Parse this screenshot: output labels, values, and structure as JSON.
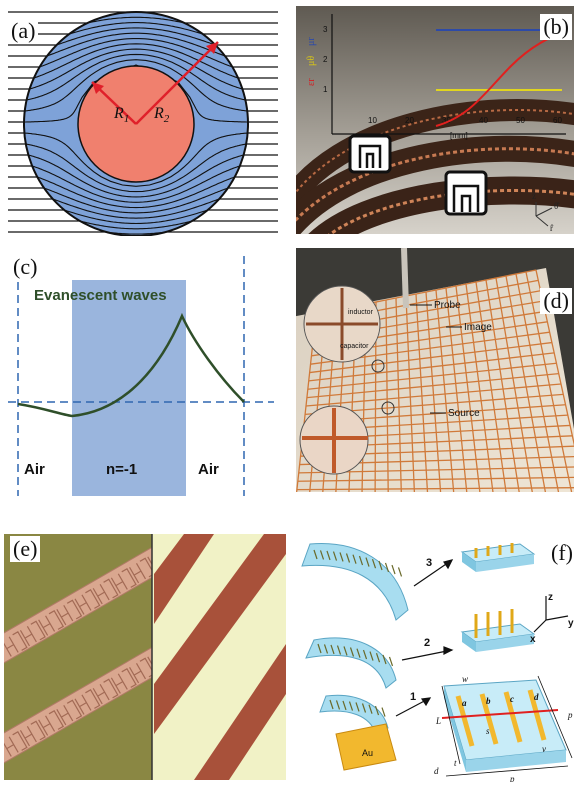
{
  "panels": {
    "a": {
      "label": "(a)",
      "r1": "R",
      "r1_sub": "1",
      "r2": "R",
      "r2_sub": "2"
    },
    "b": {
      "label": "(b)",
      "axis_x_ticks": [
        "10",
        "20",
        "30",
        "40",
        "50",
        "60"
      ],
      "axis_x_unit": "[mm]",
      "axis_y_ticks": [
        "1",
        "2",
        "3"
      ],
      "legend_labels": [
        "εr",
        "μθ",
        "μr"
      ],
      "coord_labels": [
        "ẑ",
        "θ̂",
        "r̂"
      ]
    },
    "c": {
      "label": "(c)",
      "title": "Evanescent waves",
      "regions": [
        "Air",
        "n=-1",
        "Air"
      ]
    },
    "d": {
      "label": "(d)",
      "annotations": [
        "Probe",
        "Image",
        "Source",
        "inductor",
        "capacitor"
      ]
    },
    "e": {
      "label": "(e)"
    },
    "f": {
      "label": "(f)",
      "steps": [
        "3",
        "2",
        "1"
      ],
      "axes": [
        "z",
        "y",
        "x"
      ],
      "substrate": "Au",
      "dims": [
        "L",
        "w",
        "t",
        "s",
        "v",
        "p",
        "d",
        "p",
        "a",
        "b",
        "c",
        "d"
      ]
    }
  },
  "colors": {
    "shell_blue": "#7ea2d8",
    "core_red": "#f0806e",
    "slab_blue": "#9ab5dd",
    "curve_green": "#2f4f2a",
    "cyan_layer": "#a8ddf0",
    "gold": "#f2b82e"
  }
}
